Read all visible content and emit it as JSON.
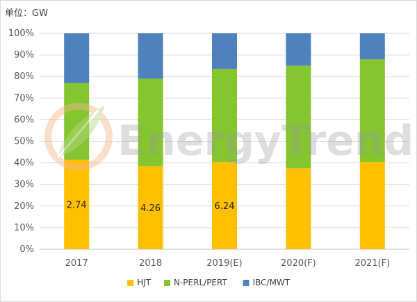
{
  "chart_data": {
    "type": "bar",
    "stacked": true,
    "percent_stacked": true,
    "unit_label": "单位：GW",
    "categories": [
      "2017",
      "2018",
      "2019(E)",
      "2020(F)",
      "2021(F)"
    ],
    "series": [
      {
        "name": "HJT",
        "color": "#FFC000",
        "values": [
          41.5,
          38.5,
          40.5,
          37.5,
          40.5
        ],
        "data_labels": [
          "2.74",
          "4.26",
          "6.24",
          "",
          ""
        ]
      },
      {
        "name": "N-PERL/PERT",
        "color": "#84C530",
        "values": [
          35.5,
          40.5,
          43,
          47.5,
          47.5
        ],
        "data_labels": [
          "",
          "",
          "",
          "",
          ""
        ]
      },
      {
        "name": "IBC/MWT",
        "color": "#4F81BD",
        "values": [
          23,
          21,
          16.5,
          15,
          12
        ],
        "data_labels": [
          "",
          "",
          "",
          "",
          ""
        ]
      }
    ],
    "ylim": [
      0,
      100
    ],
    "yticks": [
      "0%",
      "10%",
      "20%",
      "30%",
      "40%",
      "50%",
      "60%",
      "70%",
      "80%",
      "90%",
      "100%"
    ],
    "grid": true,
    "legend_position": "bottom",
    "watermark": "EnergyTrend"
  }
}
